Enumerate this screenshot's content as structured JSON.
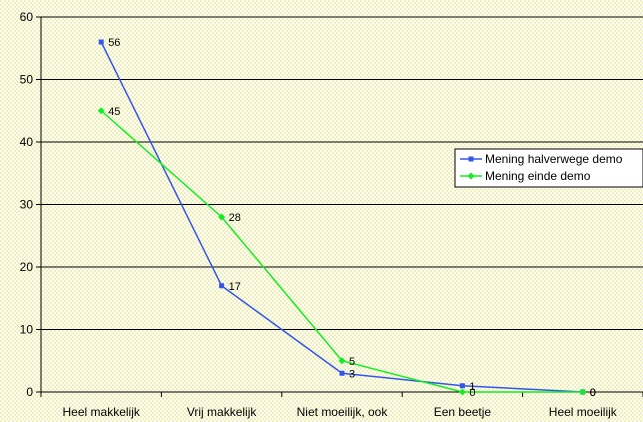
{
  "chart_data": {
    "type": "line",
    "categories": [
      "Heel makkelijk",
      "Vrij makkelijk",
      "Niet moeilijk, ook",
      "Een beetje",
      "Heel moeilijk"
    ],
    "series": [
      {
        "name": "Mening halverwege demo",
        "values": [
          56,
          17,
          3,
          1,
          0
        ],
        "color": "#3355ee",
        "marker": "square"
      },
      {
        "name": "Mening einde demo",
        "values": [
          45,
          28,
          5,
          0,
          0
        ],
        "color": "#11ee22",
        "marker": "diamond"
      }
    ],
    "ylim": [
      0,
      60
    ],
    "yticks": [
      0,
      10,
      20,
      30,
      40,
      50,
      60
    ],
    "grid": true,
    "legend": "right",
    "title": "",
    "xlabel": "",
    "ylabel": ""
  }
}
